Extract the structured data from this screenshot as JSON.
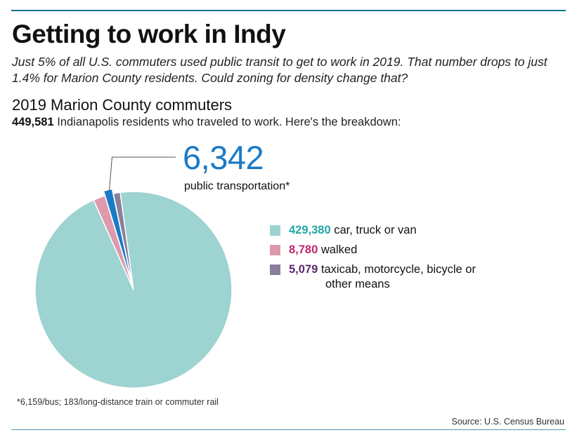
{
  "header": {
    "title": "Getting to work in Indy",
    "subtitle": "Just 5% of all U.S. commuters used public transit to get to work in 2019. That number drops to just 1.4% for Marion County residents. Could zoning for density change that?"
  },
  "section": {
    "title": "2019 Marion County commuters",
    "total_value": "449,581",
    "total_text": " Indianapolis residents who traveled to work. Here's the breakdown:"
  },
  "callout": {
    "value": "6,342",
    "label": "public transportation*"
  },
  "legend": [
    {
      "value": "429,380",
      "label": "car, truck or van",
      "label_cont": "",
      "color": "#9dd3d1",
      "value_color": "#22a7a2"
    },
    {
      "value": "8,780",
      "label": "walked",
      "label_cont": "",
      "color": "#dd9aac",
      "value_color": "#c2266f"
    },
    {
      "value": "5,079",
      "label": "taxicab, motorcycle, bicycle or",
      "label_cont": "other means",
      "color": "#8a7f9c",
      "value_color": "#5c2a6f"
    }
  ],
  "footnote": "*6,159/bus; 183/long-distance train or commuter rail",
  "source": "Source: U.S. Census Bureau",
  "chart_data": {
    "type": "pie",
    "title": "2019 Marion County commuters",
    "slices": [
      {
        "name": "car, truck or van",
        "value": 429380,
        "color": "#9dd3d1"
      },
      {
        "name": "walked",
        "value": 8780,
        "color": "#dd9aac"
      },
      {
        "name": "public transportation",
        "value": 6342,
        "color": "#1a7ac6",
        "exploded": true
      },
      {
        "name": "taxicab, motorcycle, bicycle or other means",
        "value": 5079,
        "color": "#8a7f9c"
      }
    ],
    "total": 449581
  }
}
